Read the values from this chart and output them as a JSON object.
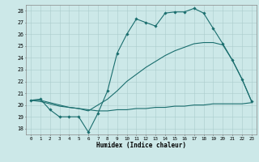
{
  "xlabel": "Humidex (Indice chaleur)",
  "xlim": [
    -0.5,
    23.5
  ],
  "ylim": [
    17.5,
    28.5
  ],
  "yticks": [
    18,
    19,
    20,
    21,
    22,
    23,
    24,
    25,
    26,
    27,
    28
  ],
  "xticks": [
    0,
    1,
    2,
    3,
    4,
    5,
    6,
    7,
    8,
    9,
    10,
    11,
    12,
    13,
    14,
    15,
    16,
    17,
    18,
    19,
    20,
    21,
    22,
    23
  ],
  "bg_color": "#cce8e8",
  "grid_color": "#aacccc",
  "line_color": "#1a6e6e",
  "line1_x": [
    0,
    1,
    2,
    3,
    4,
    5,
    6,
    7,
    8,
    9,
    10,
    11,
    12,
    13,
    14,
    15,
    16,
    17,
    18,
    19,
    20,
    21,
    22,
    23
  ],
  "line1_y": [
    20.4,
    20.5,
    19.6,
    19.0,
    19.0,
    19.0,
    17.7,
    19.3,
    21.2,
    24.4,
    26.0,
    27.3,
    27.0,
    26.7,
    27.8,
    27.9,
    27.9,
    28.2,
    27.8,
    26.5,
    25.2,
    23.8,
    22.2,
    20.3
  ],
  "line2_x": [
    0,
    1,
    2,
    3,
    4,
    5,
    6,
    7,
    8,
    9,
    10,
    11,
    12,
    13,
    14,
    15,
    16,
    17,
    18,
    19,
    20,
    21,
    22,
    23
  ],
  "line2_y": [
    20.4,
    20.4,
    20.2,
    20.0,
    19.8,
    19.7,
    19.5,
    20.0,
    20.5,
    21.2,
    22.0,
    22.6,
    23.2,
    23.7,
    24.2,
    24.6,
    24.9,
    25.2,
    25.3,
    25.3,
    25.1,
    23.8,
    22.2,
    20.3
  ],
  "line3_x": [
    0,
    1,
    2,
    3,
    4,
    5,
    6,
    7,
    8,
    9,
    10,
    11,
    12,
    13,
    14,
    15,
    16,
    17,
    18,
    19,
    20,
    21,
    22,
    23
  ],
  "line3_y": [
    20.4,
    20.3,
    20.1,
    19.9,
    19.8,
    19.7,
    19.6,
    19.5,
    19.5,
    19.6,
    19.6,
    19.7,
    19.7,
    19.8,
    19.8,
    19.9,
    19.9,
    20.0,
    20.0,
    20.1,
    20.1,
    20.1,
    20.1,
    20.2
  ]
}
